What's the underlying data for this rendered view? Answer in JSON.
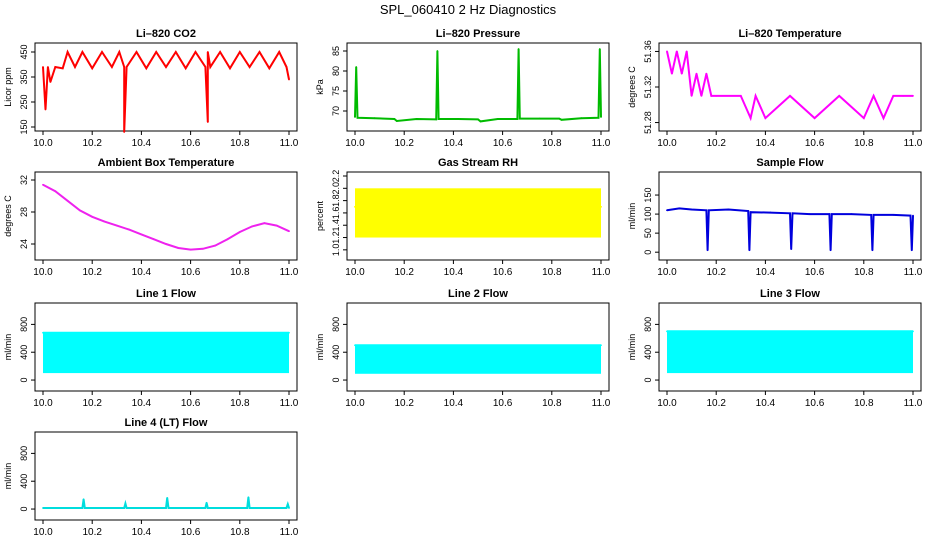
{
  "figure_title": "SPL_060410  2 Hz Diagnostics",
  "chart_data": [
    {
      "type": "line",
      "title": "Li–820 CO2",
      "xlabel": "",
      "ylabel": "Licor ppm",
      "color": "#ff0000",
      "xlim": [
        10.0,
        11.0
      ],
      "ylim": [
        150,
        470
      ],
      "xticks": [
        "10.0",
        "10.2",
        "10.4",
        "10.6",
        "10.8",
        "11.0"
      ],
      "yticks": [
        "150",
        "250",
        "350",
        "450"
      ],
      "series": [
        {
          "x": [
            10.0,
            10.01,
            10.02,
            10.03,
            10.05,
            10.08,
            10.1,
            10.13,
            10.16,
            10.2,
            10.24,
            10.28,
            10.31,
            10.33,
            10.33,
            10.34,
            10.38,
            10.42,
            10.46,
            10.5,
            10.54,
            10.58,
            10.62,
            10.66,
            10.67,
            10.67,
            10.68,
            10.72,
            10.76,
            10.8,
            10.84,
            10.88,
            10.92,
            10.96,
            10.99,
            11.0
          ],
          "y": [
            390,
            220,
            390,
            330,
            390,
            385,
            450,
            390,
            450,
            385,
            450,
            390,
            450,
            390,
            130,
            390,
            450,
            385,
            450,
            390,
            450,
            385,
            450,
            390,
            170,
            450,
            390,
            450,
            385,
            450,
            390,
            450,
            385,
            450,
            390,
            340
          ]
        }
      ]
    },
    {
      "type": "line",
      "title": "Li–820 Pressure",
      "xlabel": "",
      "ylabel": "kPa",
      "color": "#00bb00",
      "xlim": [
        10.0,
        11.0
      ],
      "ylim": [
        66,
        86
      ],
      "xticks": [
        "10.0",
        "10.2",
        "10.4",
        "10.6",
        "10.8",
        "11.0"
      ],
      "yticks": [
        "70",
        "75",
        "80",
        "85"
      ],
      "series": [
        {
          "x": [
            10.0,
            10.005,
            10.01,
            10.08,
            10.16,
            10.17,
            10.25,
            10.33,
            10.335,
            10.34,
            10.42,
            10.5,
            10.51,
            10.58,
            10.66,
            10.665,
            10.67,
            10.75,
            10.83,
            10.84,
            10.92,
            10.99,
            10.995,
            11.0
          ],
          "y": [
            68.5,
            81,
            68.3,
            68.2,
            68.0,
            67.5,
            68.0,
            67.9,
            85,
            68.0,
            68.0,
            67.9,
            67.4,
            68.0,
            68.0,
            85.5,
            68.1,
            68.1,
            68.1,
            67.8,
            68.2,
            68.3,
            85.5,
            68.5
          ]
        }
      ]
    },
    {
      "type": "line",
      "title": "Li–820 Temperature",
      "xlabel": "",
      "ylabel": "degrees C",
      "color": "#ff00ff",
      "xlim": [
        10.0,
        11.0
      ],
      "ylim": [
        51.275,
        51.365
      ],
      "xticks": [
        "10.0",
        "10.2",
        "10.4",
        "10.6",
        "10.8",
        "11.0"
      ],
      "yticks": [
        "51.28",
        "51.32",
        "51.36"
      ],
      "series": [
        {
          "x": [
            10.0,
            10.02,
            10.04,
            10.06,
            10.08,
            10.1,
            10.12,
            10.14,
            10.16,
            10.18,
            10.2,
            10.3,
            10.34,
            10.36,
            10.4,
            10.5,
            10.6,
            10.7,
            10.8,
            10.84,
            10.88,
            10.92,
            10.96,
            11.0
          ],
          "y": [
            51.36,
            51.335,
            51.36,
            51.335,
            51.36,
            51.31,
            51.335,
            51.31,
            51.335,
            51.31,
            51.31,
            51.31,
            51.285,
            51.31,
            51.285,
            51.31,
            51.285,
            51.31,
            51.285,
            51.31,
            51.285,
            51.31,
            51.31,
            51.31
          ]
        }
      ]
    },
    {
      "type": "line",
      "title": "Ambient Box Temperature",
      "xlabel": "",
      "ylabel": "degrees C",
      "color": "#ee22ee",
      "xlim": [
        10.0,
        11.0
      ],
      "ylim": [
        22.5,
        32.5
      ],
      "xticks": [
        "10.0",
        "10.2",
        "10.4",
        "10.6",
        "10.8",
        "11.0"
      ],
      "yticks": [
        "24",
        "28",
        "32"
      ],
      "series": [
        {
          "x": [
            10.0,
            10.05,
            10.1,
            10.15,
            10.2,
            10.25,
            10.3,
            10.35,
            10.4,
            10.45,
            10.5,
            10.55,
            10.6,
            10.65,
            10.7,
            10.75,
            10.8,
            10.85,
            10.9,
            10.95,
            11.0
          ],
          "y": [
            31.4,
            30.6,
            29.4,
            28.2,
            27.4,
            26.8,
            26.3,
            25.8,
            25.2,
            24.6,
            24.0,
            23.5,
            23.3,
            23.4,
            23.8,
            24.6,
            25.5,
            26.2,
            26.6,
            26.3,
            25.6
          ]
        }
      ]
    },
    {
      "type": "line",
      "title": "Gas Stream RH",
      "xlabel": "",
      "ylabel": "percent",
      "color": "#ffff00",
      "xlim": [
        10.0,
        11.0
      ],
      "ylim": [
        0.9,
        2.2
      ],
      "xticks": [
        "10.0",
        "10.2",
        "10.4",
        "10.6",
        "10.8",
        "11.0"
      ],
      "yticks": [
        "1.0",
        "1.2",
        "1.4",
        "1.6",
        "1.8",
        "2.0",
        "2.2"
      ],
      "series": [
        {
          "x": [
            10.0,
            10.05,
            10.1,
            10.15,
            10.2,
            10.25,
            10.3,
            10.35,
            10.4,
            10.45,
            10.5,
            10.55,
            10.6,
            10.65,
            10.7,
            10.75,
            10.8,
            10.85,
            10.9,
            10.95,
            11.0
          ],
          "y": [
            1.7,
            1.6,
            1.7,
            1.6,
            1.7,
            1.65,
            1.7,
            1.6,
            1.7,
            1.65,
            1.7,
            1.6,
            1.7,
            1.65,
            1.7,
            1.6,
            1.7,
            1.65,
            1.7,
            1.6,
            1.7
          ],
          "band_high": 2.0,
          "band_low": 1.2
        }
      ]
    },
    {
      "type": "line",
      "title": "Sample Flow",
      "xlabel": "",
      "ylabel": "ml/min",
      "color": "#0000dd",
      "xlim": [
        10.0,
        11.0
      ],
      "ylim": [
        -10,
        200
      ],
      "xticks": [
        "10.0",
        "10.2",
        "10.4",
        "10.6",
        "10.8",
        "11.0"
      ],
      "yticks": [
        "0",
        "50",
        "100",
        "150"
      ],
      "series": [
        {
          "x": [
            10.0,
            10.05,
            10.1,
            10.16,
            10.165,
            10.17,
            10.25,
            10.33,
            10.335,
            10.34,
            10.42,
            10.5,
            10.505,
            10.51,
            10.58,
            10.66,
            10.665,
            10.67,
            10.75,
            10.83,
            10.835,
            10.84,
            10.92,
            10.99,
            10.995,
            11.0
          ],
          "y": [
            110,
            115,
            112,
            110,
            5,
            110,
            112,
            108,
            5,
            105,
            104,
            102,
            8,
            102,
            100,
            100,
            5,
            100,
            100,
            98,
            5,
            98,
            98,
            96,
            5,
            96
          ]
        }
      ]
    },
    {
      "type": "line",
      "title": "Line 1 Flow",
      "xlabel": "",
      "ylabel": "ml/min",
      "color": "#00ffff",
      "xlim": [
        10.0,
        11.0
      ],
      "ylim": [
        -100,
        1050
      ],
      "xticks": [
        "10.0",
        "10.2",
        "10.4",
        "10.6",
        "10.8",
        "11.0"
      ],
      "yticks": [
        "0",
        "400",
        "800"
      ],
      "series": [
        {
          "x": [
            10.0,
            11.0
          ],
          "y": [
            680,
            680
          ],
          "band_high": 680,
          "band_low": 100
        }
      ]
    },
    {
      "type": "line",
      "title": "Line 2 Flow",
      "xlabel": "",
      "ylabel": "ml/min",
      "color": "#00ffff",
      "xlim": [
        10.0,
        11.0
      ],
      "ylim": [
        -100,
        1050
      ],
      "xticks": [
        "10.0",
        "10.2",
        "10.4",
        "10.6",
        "10.8",
        "11.0"
      ],
      "yticks": [
        "0",
        "400",
        "800"
      ],
      "series": [
        {
          "x": [
            10.0,
            11.0
          ],
          "y": [
            500,
            500
          ],
          "band_high": 500,
          "band_low": 90
        }
      ]
    },
    {
      "type": "line",
      "title": "Line 3 Flow",
      "xlabel": "",
      "ylabel": "ml/min",
      "color": "#00ffff",
      "xlim": [
        10.0,
        11.0
      ],
      "ylim": [
        -100,
        1050
      ],
      "xticks": [
        "10.0",
        "10.2",
        "10.4",
        "10.6",
        "10.8",
        "11.0"
      ],
      "yticks": [
        "0",
        "400",
        "800"
      ],
      "series": [
        {
          "x": [
            10.0,
            11.0
          ],
          "y": [
            700,
            700
          ],
          "band_high": 700,
          "band_low": 100
        }
      ]
    },
    {
      "type": "line",
      "title": "Line 4 (LT) Flow",
      "xlabel": "",
      "ylabel": "ml/min",
      "color": "#00dddd",
      "xlim": [
        10.0,
        11.0
      ],
      "ylim": [
        -100,
        1050
      ],
      "xticks": [
        "10.0",
        "10.2",
        "10.4",
        "10.6",
        "10.8",
        "11.0"
      ],
      "yticks": [
        "0",
        "400",
        "800"
      ],
      "series": [
        {
          "x": [
            10.0,
            10.16,
            10.165,
            10.17,
            10.33,
            10.335,
            10.34,
            10.5,
            10.505,
            10.51,
            10.66,
            10.665,
            10.67,
            10.83,
            10.835,
            10.84,
            10.99,
            10.995,
            11.0
          ],
          "y": [
            15,
            15,
            140,
            15,
            15,
            80,
            15,
            15,
            160,
            15,
            15,
            90,
            15,
            15,
            170,
            15,
            15,
            70,
            15
          ]
        }
      ]
    }
  ]
}
